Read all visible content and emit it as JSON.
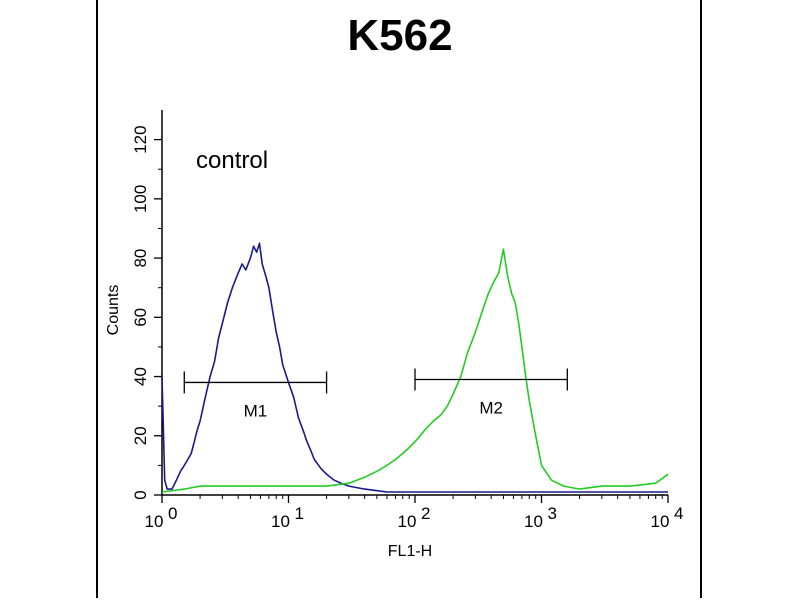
{
  "chart_data": {
    "type": "line",
    "title": "K562",
    "xlabel": "FL1-H",
    "ylabel": "Counts",
    "xscale": "log",
    "xlim": [
      1,
      10000
    ],
    "ylim": [
      0,
      130
    ],
    "x_ticks": [
      {
        "value": 1,
        "base": "10",
        "exp": "0"
      },
      {
        "value": 10,
        "base": "10",
        "exp": "1"
      },
      {
        "value": 100,
        "base": "10",
        "exp": "2"
      },
      {
        "value": 1000,
        "base": "10",
        "exp": "3"
      },
      {
        "value": 10000,
        "base": "10",
        "exp": "4"
      }
    ],
    "y_ticks": [
      0,
      20,
      40,
      60,
      80,
      100,
      120
    ],
    "annotation": "control",
    "grid": false,
    "markers": [
      {
        "label": "M1",
        "x_start": 1.5,
        "x_end": 20,
        "y": 38
      },
      {
        "label": "M2",
        "x_start": 100,
        "x_end": 1600,
        "y": 39
      }
    ],
    "series": [
      {
        "color": "#1a1a8c",
        "x": [
          1.0,
          1.05,
          1.1,
          1.2,
          1.3,
          1.4,
          1.5,
          1.6,
          1.7,
          1.8,
          1.9,
          2.0,
          2.2,
          2.4,
          2.6,
          2.8,
          3.0,
          3.3,
          3.6,
          4.0,
          4.3,
          4.6,
          5.0,
          5.3,
          5.6,
          5.9,
          6.2,
          6.6,
          7.0,
          7.5,
          8.0,
          8.5,
          9.0,
          10,
          11,
          12,
          13,
          14,
          15,
          16,
          18,
          20,
          23,
          26,
          30,
          40,
          60,
          100,
          200,
          500,
          1000,
          3000,
          10000
        ],
        "y": [
          40,
          5,
          2,
          2,
          5,
          8,
          10,
          12,
          14,
          18,
          22,
          25,
          33,
          40,
          45,
          53,
          58,
          65,
          70,
          75,
          78,
          76,
          80,
          84,
          82,
          85,
          78,
          74,
          70,
          62,
          55,
          50,
          44,
          38,
          33,
          26,
          22,
          18,
          15,
          12,
          9,
          7,
          5,
          4,
          3,
          2,
          1,
          1,
          1,
          1,
          1,
          1,
          1
        ]
      },
      {
        "color": "#22cc22",
        "x": [
          1.0,
          1.5,
          2,
          3,
          5,
          8,
          12,
          20,
          30,
          40,
          50,
          60,
          70,
          80,
          90,
          100,
          110,
          120,
          140,
          160,
          180,
          200,
          230,
          260,
          300,
          340,
          380,
          420,
          460,
          500,
          540,
          580,
          620,
          660,
          700,
          750,
          800,
          900,
          1000,
          1200,
          1500,
          2000,
          3000,
          5000,
          8000,
          10000
        ],
        "y": [
          1,
          2,
          3,
          3,
          3,
          3,
          3,
          3,
          4,
          6,
          8,
          10,
          12,
          14,
          16,
          18,
          20,
          22,
          25,
          27,
          30,
          34,
          40,
          48,
          55,
          62,
          68,
          72,
          75,
          83,
          74,
          68,
          65,
          58,
          50,
          40,
          32,
          20,
          10,
          5,
          3,
          2,
          3,
          3,
          4,
          7
        ]
      }
    ]
  },
  "colors": {
    "axis": "#000000",
    "series1": "#1a1a8c",
    "series2": "#22cc22"
  }
}
